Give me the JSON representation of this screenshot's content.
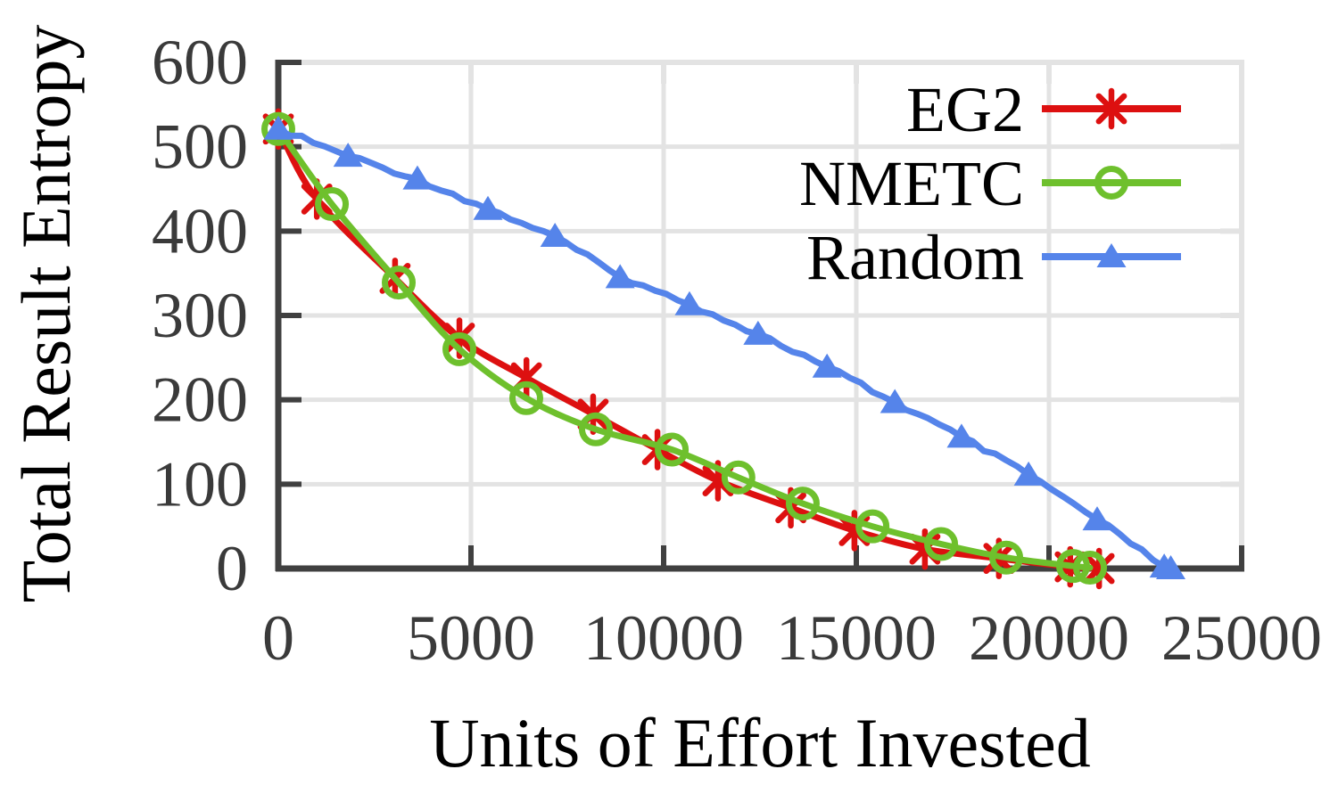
{
  "chart_data": {
    "type": "line",
    "title": "",
    "xlabel": "Units of Effort Invested",
    "ylabel": "Total Result Entropy",
    "xlim": [
      0,
      25000
    ],
    "ylim": [
      0,
      600
    ],
    "xticks": [
      0,
      5000,
      10000,
      15000,
      20000,
      25000
    ],
    "yticks": [
      0,
      100,
      200,
      300,
      400,
      500,
      600
    ],
    "grid": true,
    "legend_position": "top-right",
    "series": [
      {
        "name": "EG2",
        "color": "#dd1010",
        "marker": "star",
        "jitter": false,
        "points": [
          [
            0,
            521
          ],
          [
            1000,
            438
          ],
          [
            3030,
            344
          ],
          [
            4700,
            273
          ],
          [
            6440,
            226
          ],
          [
            8170,
            183
          ],
          [
            9840,
            141
          ],
          [
            11410,
            104
          ],
          [
            13300,
            72
          ],
          [
            14950,
            45
          ],
          [
            16780,
            23
          ],
          [
            18700,
            12
          ],
          [
            20550,
            2
          ],
          [
            21300,
            0
          ]
        ]
      },
      {
        "name": "NMETC",
        "color": "#6ec02d",
        "marker": "circle",
        "jitter": false,
        "points": [
          [
            0,
            521
          ],
          [
            1390,
            432
          ],
          [
            3125,
            339
          ],
          [
            4700,
            260
          ],
          [
            6435,
            202
          ],
          [
            8240,
            165
          ],
          [
            10210,
            141
          ],
          [
            11940,
            108
          ],
          [
            13610,
            77
          ],
          [
            15420,
            50
          ],
          [
            17200,
            29
          ],
          [
            18890,
            13
          ],
          [
            20625,
            3
          ],
          [
            21065,
            1
          ]
        ]
      },
      {
        "name": "Random",
        "color": "#5584ea",
        "marker": "triangle",
        "jitter": true,
        "points": [
          [
            0,
            521
          ],
          [
            1810,
            489
          ],
          [
            3610,
            462
          ],
          [
            5440,
            426
          ],
          [
            7180,
            394
          ],
          [
            8870,
            345
          ],
          [
            10670,
            313
          ],
          [
            12450,
            278
          ],
          [
            14240,
            239
          ],
          [
            16000,
            197
          ],
          [
            17730,
            156
          ],
          [
            19470,
            111
          ],
          [
            21250,
            58
          ],
          [
            22990,
            2
          ],
          [
            23160,
            0
          ]
        ]
      }
    ]
  },
  "style": {
    "axis": "#404040",
    "grid": "#e3e3e3",
    "tick_label": "#3a3a3a",
    "text": "#000000",
    "background": "#ffffff"
  }
}
